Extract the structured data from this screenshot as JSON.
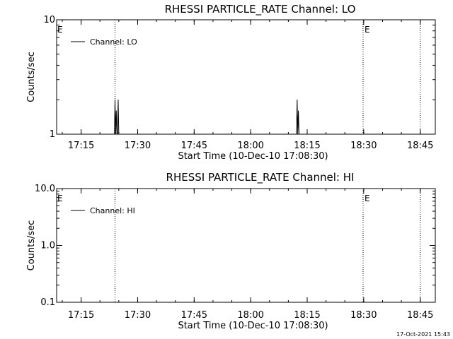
{
  "footer": {
    "timestamp": "17-Oct-2021 15:43"
  },
  "chart_data": [
    {
      "type": "line",
      "title": "RHESSI PARTICLE_RATE Channel: LO",
      "xlabel": "Start Time (10-Dec-10 17:08:30)",
      "ylabel": "Counts/sec",
      "ylog": true,
      "ylim": [
        1,
        10
      ],
      "yticks": [
        "1",
        "10"
      ],
      "xlim": [
        "17:08:30",
        "18:49:00"
      ],
      "xticks": [
        "17:15",
        "17:30",
        "17:45",
        "18:00",
        "18:15",
        "18:30",
        "18:45"
      ],
      "legend": "top-left",
      "series": [
        {
          "name": "Channel: LO",
          "x": [
            "17:23:50",
            "17:24:00",
            "17:24:10",
            "17:24:20",
            "17:24:30",
            "17:24:40",
            "17:24:50",
            "17:25:00",
            "17:25:10",
            "17:25:20",
            "18:12:10",
            "18:12:20",
            "18:12:30",
            "18:12:40",
            "18:12:50"
          ],
          "y": [
            1,
            2,
            1,
            1.6,
            1,
            1,
            2,
            1,
            1,
            1,
            1,
            2,
            1,
            1.6,
            1
          ]
        }
      ],
      "vlines": [
        {
          "x": "17:24:00",
          "label": ""
        },
        {
          "x": "18:29:50",
          "label": "E"
        },
        {
          "x": "18:45:00",
          "label": ""
        }
      ],
      "corner_marker": "E"
    },
    {
      "type": "line",
      "title": "RHESSI PARTICLE_RATE Channel: HI",
      "xlabel": "Start Time (10-Dec-10 17:08:30)",
      "ylabel": "Counts/sec",
      "ylog": true,
      "ylim": [
        0.1,
        10
      ],
      "yticks": [
        "0.1",
        "1.0",
        "10.0"
      ],
      "xlim": [
        "17:08:30",
        "18:49:00"
      ],
      "xticks": [
        "17:15",
        "17:30",
        "17:45",
        "18:00",
        "18:15",
        "18:30",
        "18:45"
      ],
      "legend": "top-left",
      "series": [
        {
          "name": "Channel: HI",
          "x": [],
          "y": []
        }
      ],
      "vlines": [
        {
          "x": "17:24:00",
          "label": ""
        },
        {
          "x": "18:29:50",
          "label": "E"
        },
        {
          "x": "18:45:00",
          "label": ""
        }
      ],
      "corner_marker": "E"
    }
  ]
}
